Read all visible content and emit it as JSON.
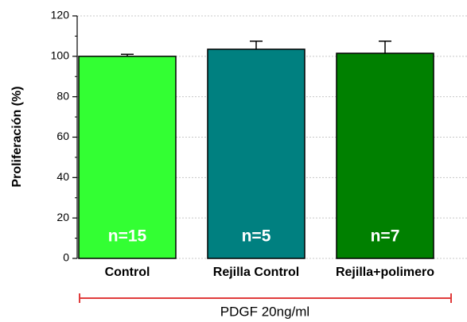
{
  "chart_data": {
    "type": "bar",
    "categories": [
      "Control",
      "Rejilla Control",
      "Rejilla+polimero"
    ],
    "values": [
      100,
      103.5,
      101.5
    ],
    "errors": [
      1,
      4,
      6
    ],
    "colors": [
      "#33ff33",
      "#008080",
      "#008000"
    ],
    "bar_labels": [
      "n=15",
      "n=5",
      "n=7"
    ],
    "ylabel": "Proliferación (%)",
    "ylim": [
      0,
      120
    ],
    "yticks": [
      0,
      20,
      40,
      60,
      80,
      100,
      120
    ],
    "yminorticks": [
      10,
      30,
      50,
      70,
      90,
      110
    ],
    "grid": true,
    "bracket_label": "PDGF 20ng/ml",
    "bracket_color": "#e03c3c"
  }
}
